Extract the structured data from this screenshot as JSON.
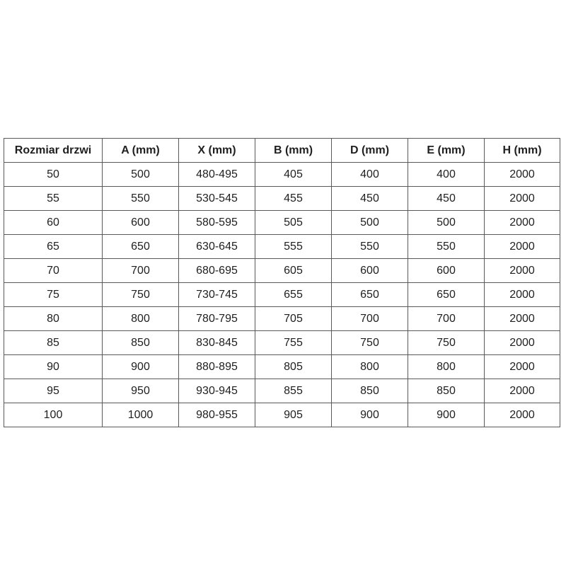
{
  "table": {
    "headers": [
      "Rozmiar drzwi",
      "A (mm)",
      "X (mm)",
      "B (mm)",
      "D (mm)",
      "E (mm)",
      "H (mm)"
    ],
    "rows": [
      [
        "50",
        "500",
        "480-495",
        "405",
        "400",
        "400",
        "2000"
      ],
      [
        "55",
        "550",
        "530-545",
        "455",
        "450",
        "450",
        "2000"
      ],
      [
        "60",
        "600",
        "580-595",
        "505",
        "500",
        "500",
        "2000"
      ],
      [
        "65",
        "650",
        "630-645",
        "555",
        "550",
        "550",
        "2000"
      ],
      [
        "70",
        "700",
        "680-695",
        "605",
        "600",
        "600",
        "2000"
      ],
      [
        "75",
        "750",
        "730-745",
        "655",
        "650",
        "650",
        "2000"
      ],
      [
        "80",
        "800",
        "780-795",
        "705",
        "700",
        "700",
        "2000"
      ],
      [
        "85",
        "850",
        "830-845",
        "755",
        "750",
        "750",
        "2000"
      ],
      [
        "90",
        "900",
        "880-895",
        "805",
        "800",
        "800",
        "2000"
      ],
      [
        "95",
        "950",
        "930-945",
        "855",
        "850",
        "850",
        "2000"
      ],
      [
        "100",
        "1000",
        "980-955",
        "905",
        "900",
        "900",
        "2000"
      ]
    ]
  },
  "colors": {
    "border": "#595959",
    "text": "#1f1f1f",
    "background": "#ffffff"
  }
}
